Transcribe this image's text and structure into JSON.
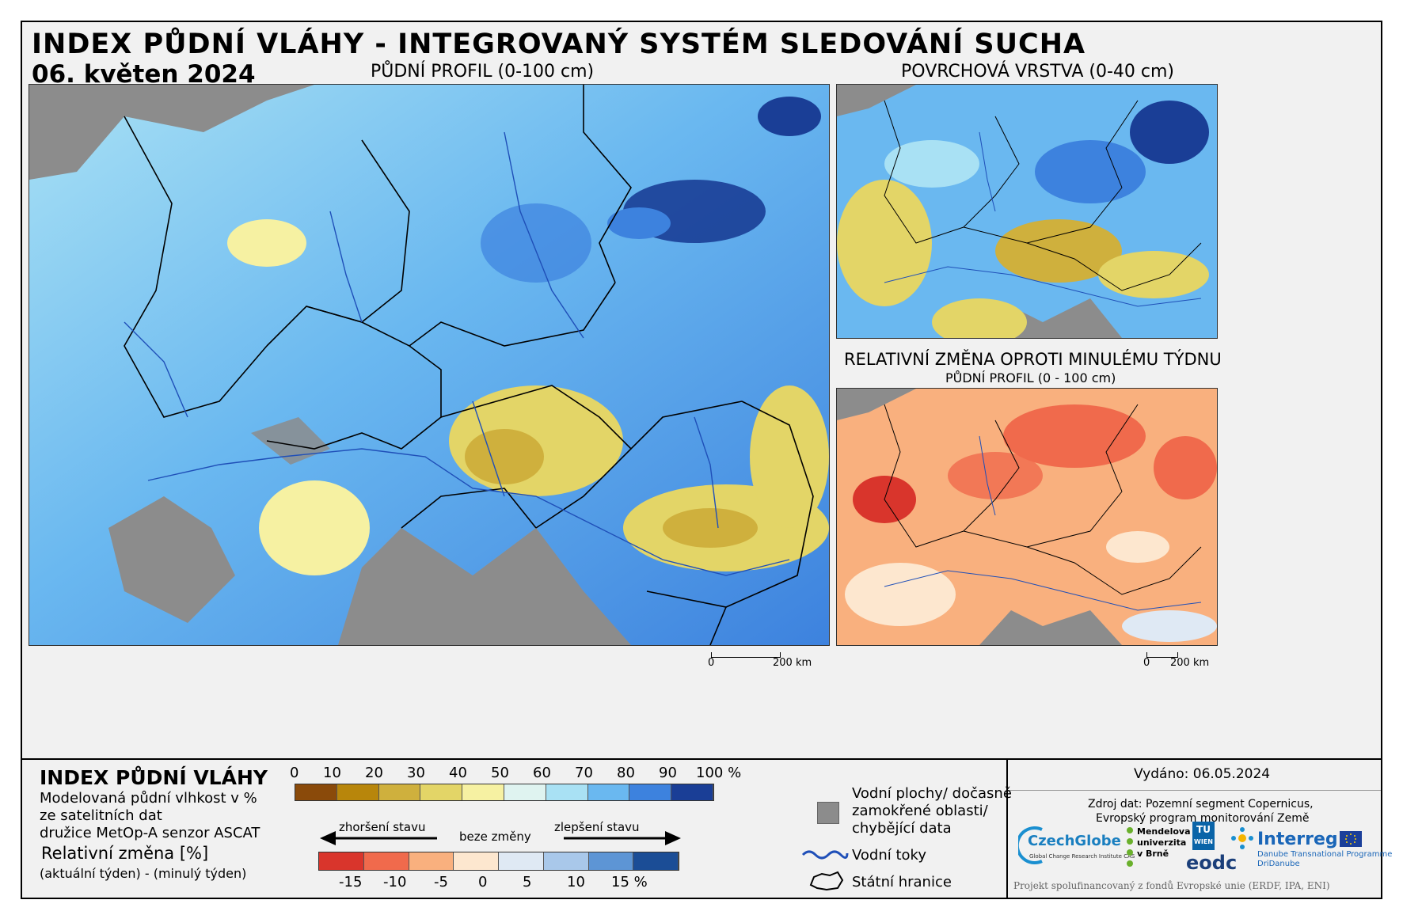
{
  "header": {
    "title": "INDEX PŮDNÍ VLÁHY - INTEGROVANÝ SYSTÉM SLEDOVÁNÍ SUCHA",
    "date": "06. květen 2024"
  },
  "maps": {
    "main": {
      "title": "PŮDNÍ PROFIL (0-100 cm)"
    },
    "surface": {
      "title": "POVRCHOVÁ VRSTVA (0-40 cm)"
    },
    "change": {
      "title": "RELATIVNÍ ZMĚNA OPROTI MINULÉMU TÝDNU",
      "subtitle": "PŮDNÍ PROFIL (0 - 100 cm)"
    }
  },
  "scalebars": {
    "main": {
      "start": "0",
      "end": "200 km"
    },
    "small": {
      "start": "0",
      "end": "200 km"
    }
  },
  "legend": {
    "heading": "INDEX PŮDNÍ VLÁHY",
    "desc_lines": [
      "Modelovaná půdní vlhkost v %",
      "ze satelitních dat",
      "družice MetOp-A senzor ASCAT"
    ],
    "relative_heading": "Relativní změna [%]",
    "relative_desc": "(aktuální týden) - (minulý týden)",
    "index_scale": {
      "ticks": [
        "0",
        "10",
        "20",
        "30",
        "40",
        "50",
        "60",
        "70",
        "80",
        "90",
        "100 %"
      ],
      "colors": [
        "#8a4a0a",
        "#b8860b",
        "#cfb03d",
        "#e3d567",
        "#f6f1a2",
        "#dff3f0",
        "#a9e1f4",
        "#6ab8f0",
        "#3d82de",
        "#1a3e96"
      ]
    },
    "change_scale": {
      "worse_label": "zhoršení stavu",
      "nochange_label": "beze změny",
      "better_label": "zlepšení stavu",
      "ticks": [
        "-15",
        "-10",
        "-5",
        "0",
        "5",
        "10",
        "15 %"
      ],
      "colors": [
        "#d9352c",
        "#f06a4c",
        "#f9b07e",
        "#fde7cf",
        "#dfe9f4",
        "#a9c8ea",
        "#5d95d5",
        "#1b4d96"
      ]
    },
    "symbols": {
      "water_label_lines": [
        "Vodní plochy/ dočasně",
        "zamokřené oblasti/",
        "chybějící data"
      ],
      "rivers_label": "Vodní toky",
      "borders_label": "Státní hranice"
    }
  },
  "info": {
    "issued": "Vydáno: 06.05.2024",
    "source_lines": [
      "Zdroj dat: Pozemní segment Copernicus,",
      "Evropský program monitorování Země"
    ],
    "logos": {
      "czechglobe": "CzechGlobe",
      "czechglobe_sub": "Global Change Research Institute CAS",
      "mendelu_lines": [
        "Mendelova",
        "univerzita",
        "v Brně"
      ],
      "tuwien_lines": [
        "TU",
        "WIEN"
      ],
      "eodc": "eodc",
      "interreg": "Interreg",
      "interreg_sub1": "Danube Transnational Programme",
      "interreg_sub2": "DriDanube"
    },
    "funding": "Projekt spolufinancovaný z fondů Evropské unie (ERDF, IPA, ENI)"
  },
  "colors": {
    "land_gray": "#8c8c8c",
    "border": "#000000",
    "river": "#1f4fb8"
  }
}
